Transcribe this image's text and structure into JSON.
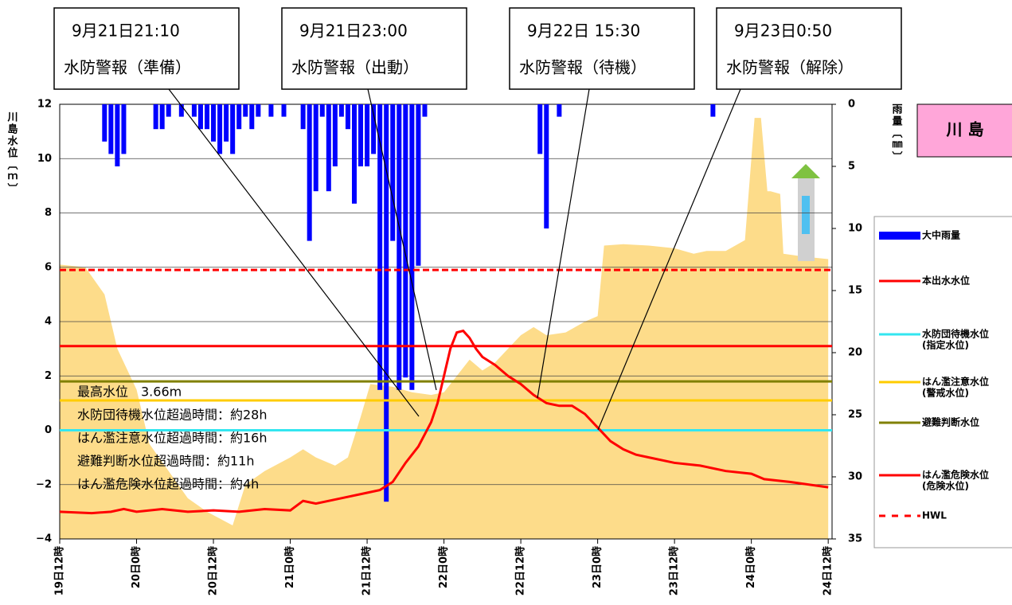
{
  "chart_data": {
    "type": "combo",
    "title": "川 島",
    "ylabel": "川島水位〔ｍ〕",
    "y2label": "雨量〔㎜〕",
    "xlim": [
      0,
      120.6
    ],
    "xticks": [
      {
        "value": 0,
        "label": "19日12時"
      },
      {
        "value": 12,
        "label": "20日0時"
      },
      {
        "value": 24,
        "label": "20日12時"
      },
      {
        "value": 36,
        "label": "21日0時"
      },
      {
        "value": 48,
        "label": "21日12時"
      },
      {
        "value": 60,
        "label": "22日0時"
      },
      {
        "value": 72,
        "label": "22日12時"
      },
      {
        "value": 84,
        "label": "23日0時"
      },
      {
        "value": 96,
        "label": "23日12時"
      },
      {
        "value": 108,
        "label": "24日0時"
      },
      {
        "value": 120,
        "label": "24日12時"
      }
    ],
    "ylim": [
      -4,
      12
    ],
    "yticks": [
      {
        "value": -4,
        "label": "−4"
      },
      {
        "value": -2,
        "label": "−2"
      },
      0,
      2,
      4,
      6,
      8,
      10,
      12
    ],
    "y2lim": [
      0,
      35
    ],
    "y2_inverted": true,
    "y2ticks": [
      0,
      5,
      10,
      15,
      20,
      25,
      30,
      35
    ],
    "grid": true,
    "area": {
      "color": "#fddc8a",
      "x": [
        0,
        4,
        7,
        9,
        12,
        14,
        17,
        20,
        23,
        27,
        29,
        32,
        36,
        38,
        40,
        43,
        45,
        47,
        48.5,
        52,
        55,
        58,
        60,
        62,
        64,
        66,
        68,
        70,
        72,
        74,
        76,
        79,
        82,
        84,
        85,
        88,
        92,
        96,
        99,
        101,
        104,
        107,
        108.5,
        109.5,
        110.5,
        111,
        112.5,
        113,
        116,
        120
      ],
      "values": [
        6.1,
        6.0,
        5.0,
        3.0,
        1.5,
        -0.5,
        -1.5,
        -2.5,
        -3.0,
        -3.5,
        -2.0,
        -1.5,
        -1.0,
        -0.7,
        -1.0,
        -1.3,
        -1.0,
        0.5,
        1.7,
        1.6,
        1.4,
        1.3,
        1.4,
        2.0,
        2.6,
        2.2,
        2.5,
        3.0,
        3.5,
        3.8,
        3.5,
        3.6,
        4.0,
        4.2,
        6.8,
        6.85,
        6.8,
        6.7,
        6.5,
        6.6,
        6.6,
        7.0,
        11.5,
        11.5,
        8.8,
        8.8,
        8.7,
        6.5,
        6.4,
        6.3
      ]
    },
    "series": [
      {
        "name": "大中雨量",
        "color": "#0000ff",
        "kind": "bar",
        "axis": "y2",
        "x": [
          7,
          8,
          9,
          10,
          15,
          16,
          17,
          19,
          21,
          22,
          23,
          24,
          25,
          26,
          27,
          28,
          29,
          30,
          31,
          33,
          35,
          38,
          39,
          40,
          41,
          42,
          43,
          44,
          45,
          46,
          47,
          48,
          49,
          50,
          51,
          52,
          53,
          54,
          55,
          56,
          57,
          75,
          76,
          78,
          102
        ],
        "values": [
          3,
          4,
          5,
          4,
          2,
          2,
          1,
          1,
          1,
          2,
          2,
          3,
          4,
          3,
          4,
          2,
          1,
          2,
          1,
          1,
          1,
          2,
          11,
          7,
          1,
          7,
          5,
          1,
          2,
          8,
          5,
          5,
          4,
          23,
          32,
          11,
          23,
          22,
          23,
          13,
          1,
          4,
          10,
          1,
          1
        ]
      },
      {
        "name": "本出水水位",
        "color": "#ff0000",
        "kind": "line",
        "x": [
          0,
          5,
          8,
          10,
          12,
          16,
          20,
          24,
          28,
          32,
          36,
          38,
          40,
          44,
          48,
          50,
          52,
          54,
          56,
          58,
          59,
          60,
          61,
          62,
          63,
          64,
          65,
          66,
          68,
          70,
          72,
          74,
          76,
          78,
          80,
          82,
          84,
          86,
          88,
          90,
          92,
          96,
          100,
          104,
          108,
          110,
          114,
          120
        ],
        "values": [
          -3.0,
          -3.05,
          -3.0,
          -2.9,
          -3.0,
          -2.9,
          -3.0,
          -2.95,
          -3.0,
          -2.9,
          -2.95,
          -2.6,
          -2.7,
          -2.5,
          -2.3,
          -2.2,
          -1.9,
          -1.2,
          -0.6,
          0.3,
          1.0,
          2.0,
          3.0,
          3.6,
          3.66,
          3.4,
          3.0,
          2.7,
          2.4,
          2.0,
          1.7,
          1.3,
          1.0,
          0.9,
          0.9,
          0.6,
          0.1,
          -0.4,
          -0.7,
          -0.9,
          -1.0,
          -1.2,
          -1.3,
          -1.5,
          -1.6,
          -1.8,
          -1.9,
          -2.1
        ]
      },
      {
        "name": "水防団待機水位",
        "sublabel": "(指定水位)",
        "color": "#33e6f0",
        "kind": "hline",
        "value": 0
      },
      {
        "name": "はん濫注意水位",
        "sublabel": "(警戒水位)",
        "color": "#ffcc00",
        "kind": "hline",
        "value": 1.1
      },
      {
        "name": "避難判断水位",
        "color": "#808000",
        "kind": "hline",
        "value": 1.8
      },
      {
        "name": "はん濫危険水位",
        "sublabel": "(危険水位)",
        "color": "#ff0000",
        "kind": "hline",
        "value": 3.1
      },
      {
        "name": "HWL",
        "color": "#ff0000",
        "kind": "hline",
        "value": 5.9,
        "dashed": true
      }
    ],
    "callouts": [
      {
        "date": "9月21日21:10",
        "label": "水防警報（準備）"
      },
      {
        "date": "9月21日23:00",
        "label": "水防警報（出動）"
      },
      {
        "date": "9月22日 15:30",
        "label": "水防警報（待機）"
      },
      {
        "date": "9月23日0:50",
        "label": "水防警報（解除）"
      }
    ],
    "stats": [
      "最高水位　3.66m",
      "水防団待機水位超過時間：約28h",
      "はん濫注意水位超過時間：約16h",
      "避難判断水位超過時間：約11h",
      "はん濫危険水位超過時間：約4h"
    ]
  }
}
